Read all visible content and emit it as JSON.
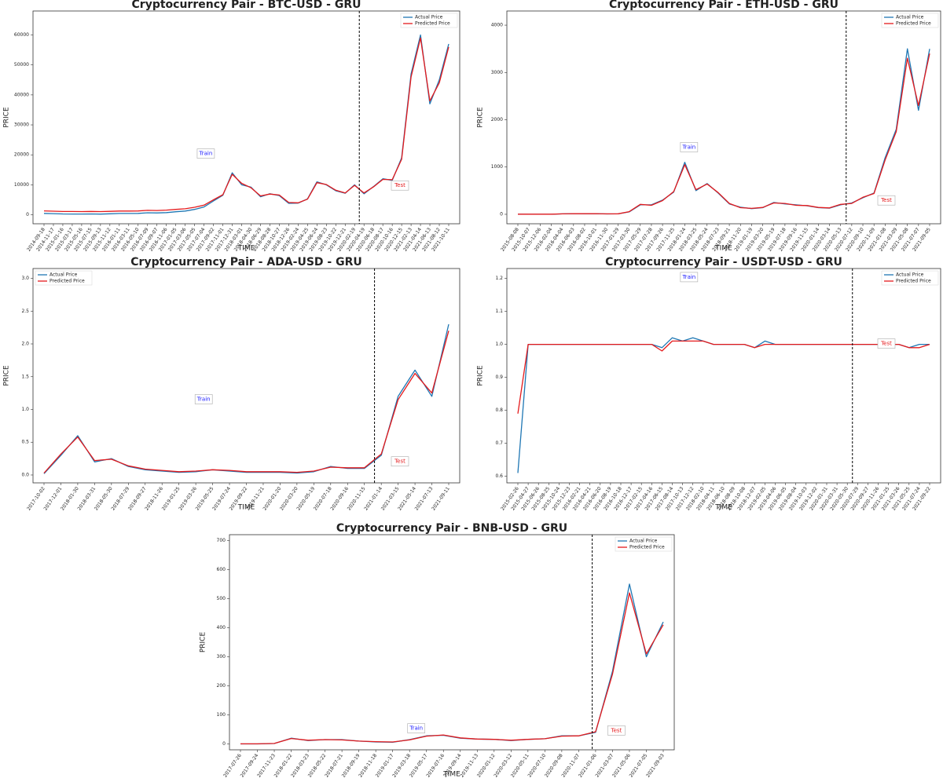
{
  "chart_data": [
    {
      "type": "line",
      "title": "Cryptocurrency Pair - BTC-USD - GRU",
      "xlabel": "TIME",
      "ylabel": "PRICE",
      "train_label": "Train",
      "test_label": "Test",
      "legend": "upper right",
      "split": 33.5,
      "categories": [
        "2014-09-18",
        "2014-11-17",
        "2015-01-16",
        "2015-03-17",
        "2015-05-16",
        "2015-07-15",
        "2015-09-13",
        "2015-11-12",
        "2016-01-11",
        "2016-03-11",
        "2016-05-10",
        "2016-07-09",
        "2016-09-07",
        "2016-11-06",
        "2017-01-05",
        "2017-03-06",
        "2017-05-05",
        "2017-07-04",
        "2017-09-02",
        "2017-11-01",
        "2017-12-31",
        "2018-03-01",
        "2018-04-30",
        "2018-06-29",
        "2018-08-28",
        "2018-10-27",
        "2018-12-26",
        "2019-02-24",
        "2019-04-25",
        "2019-06-24",
        "2019-08-23",
        "2019-10-22",
        "2019-12-21",
        "2020-02-19",
        "2020-04-19",
        "2020-06-18",
        "2020-08-17",
        "2020-10-16",
        "2020-12-15",
        "2021-02-13",
        "2021-04-14",
        "2021-06-13",
        "2021-08-12",
        "2021-10-11"
      ],
      "series": [
        {
          "name": "Actual Price",
          "color": "#1f77b4",
          "values": [
            450,
            380,
            270,
            250,
            240,
            280,
            230,
            330,
            430,
            420,
            450,
            660,
            610,
            720,
            1000,
            1250,
            1800,
            2600,
            4600,
            6500,
            14000,
            10000,
            9200,
            6000,
            7000,
            6400,
            3800,
            3900,
            5300,
            11000,
            10000,
            8000,
            7200,
            10000,
            7000,
            9400,
            12000,
            11500,
            19000,
            47000,
            60000,
            37000,
            45000,
            57000
          ]
        },
        {
          "name": "Predicted Price",
          "color": "#e41a1c",
          "values": [
            1300,
            1200,
            1100,
            1080,
            1070,
            1110,
            1060,
            1150,
            1250,
            1240,
            1280,
            1480,
            1430,
            1550,
            1800,
            2000,
            2500,
            3200,
            5000,
            6700,
            13500,
            10500,
            9000,
            6300,
            6900,
            6600,
            4100,
            4000,
            5200,
            10700,
            10100,
            8200,
            7300,
            9800,
            7300,
            9300,
            11800,
            11700,
            18500,
            46000,
            59000,
            38000,
            44000,
            56000
          ]
        }
      ],
      "ylim": [
        -3000,
        68000
      ],
      "yticks": [
        0,
        10000,
        20000,
        30000,
        40000,
        50000,
        60000
      ]
    },
    {
      "type": "line",
      "title": "Cryptocurrency Pair - ETH-USD - GRU",
      "xlabel": "TIME",
      "ylabel": "PRICE",
      "train_label": "Train",
      "test_label": "Test",
      "legend": "upper right",
      "split": 29.5,
      "categories": [
        "2015-08-08",
        "2015-10-07",
        "2015-12-06",
        "2016-02-04",
        "2016-04-04",
        "2016-06-03",
        "2016-08-02",
        "2016-10-01",
        "2016-11-30",
        "2017-01-29",
        "2017-03-30",
        "2017-05-29",
        "2017-07-28",
        "2017-09-26",
        "2017-11-25",
        "2018-01-24",
        "2018-03-25",
        "2018-05-24",
        "2018-07-23",
        "2018-09-21",
        "2018-11-20",
        "2019-01-19",
        "2019-03-20",
        "2019-05-19",
        "2019-07-18",
        "2019-09-16",
        "2019-11-15",
        "2020-01-14",
        "2020-03-14",
        "2020-05-13",
        "2020-07-12",
        "2020-09-10",
        "2020-11-09",
        "2021-01-08",
        "2021-03-09",
        "2021-05-08",
        "2021-07-07",
        "2021-09-05"
      ],
      "series": [
        {
          "name": "Actual Price",
          "color": "#1f77b4",
          "values": [
            2,
            1,
            1,
            1,
            9,
            14,
            11,
            12,
            8,
            10,
            50,
            200,
            200,
            300,
            470,
            1100,
            500,
            650,
            450,
            220,
            150,
            120,
            140,
            250,
            220,
            200,
            180,
            140,
            130,
            200,
            240,
            350,
            450,
            1200,
            1800,
            3500,
            2200,
            3500
          ]
        },
        {
          "name": "Predicted Price",
          "color": "#e41a1c",
          "values": [
            3,
            2,
            2,
            2,
            10,
            15,
            12,
            12,
            9,
            11,
            55,
            210,
            190,
            290,
            480,
            1050,
            520,
            640,
            460,
            230,
            140,
            125,
            145,
            240,
            230,
            190,
            185,
            145,
            135,
            210,
            230,
            360,
            440,
            1150,
            1750,
            3300,
            2300,
            3400
          ]
        }
      ],
      "ylim": [
        -200,
        4300
      ],
      "yticks": [
        0,
        1000,
        2000,
        3000,
        4000
      ]
    },
    {
      "type": "line",
      "title": "Cryptocurrency Pair - ADA-USD - GRU",
      "xlabel": "TIME",
      "ylabel": "PRICE",
      "train_label": "Train",
      "test_label": "Test",
      "legend": "upper left",
      "split": 19.6,
      "categories": [
        "2017-10-02",
        "2017-12-01",
        "2018-01-30",
        "2018-03-31",
        "2018-05-30",
        "2018-07-29",
        "2018-09-27",
        "2018-11-26",
        "2019-01-25",
        "2019-03-26",
        "2019-05-25",
        "2019-07-24",
        "2019-09-22",
        "2019-11-21",
        "2020-01-20",
        "2020-03-20",
        "2020-05-19",
        "2020-07-18",
        "2020-09-16",
        "2020-11-15",
        "2021-01-14",
        "2021-03-15",
        "2021-05-14",
        "2021-07-13",
        "2021-09-11"
      ],
      "series": [
        {
          "name": "Actual Price",
          "color": "#1f77b4",
          "values": [
            0.02,
            0.3,
            0.6,
            0.2,
            0.25,
            0.13,
            0.08,
            0.06,
            0.04,
            0.05,
            0.08,
            0.06,
            0.04,
            0.04,
            0.04,
            0.03,
            0.05,
            0.13,
            0.1,
            0.1,
            0.3,
            1.2,
            1.6,
            1.2,
            2.3
          ]
        },
        {
          "name": "Predicted Price",
          "color": "#e41a1c",
          "values": [
            0.03,
            0.32,
            0.58,
            0.22,
            0.24,
            0.14,
            0.09,
            0.07,
            0.05,
            0.06,
            0.08,
            0.07,
            0.05,
            0.05,
            0.05,
            0.04,
            0.06,
            0.12,
            0.11,
            0.11,
            0.32,
            1.15,
            1.55,
            1.25,
            2.2
          ]
        }
      ],
      "ylim": [
        -0.12,
        3.15
      ],
      "yticks": [
        {
          "value": 0,
          "label": "0.0"
        },
        0.5,
        {
          "value": 1,
          "label": "1.0"
        },
        1.5,
        {
          "value": 2,
          "label": "2.0"
        },
        2.5,
        {
          "value": 3,
          "label": "3.0"
        }
      ]
    },
    {
      "type": "line",
      "title": "Cryptocurrency Pair - USDT-USD - GRU",
      "xlabel": "TIME",
      "ylabel": "PRICE",
      "train_label": "Train",
      "test_label": "Test",
      "legend": "upper right",
      "split": 32.5,
      "categories": [
        "2015-02-26",
        "2015-04-27",
        "2015-06-26",
        "2015-08-25",
        "2015-10-24",
        "2015-12-23",
        "2016-02-21",
        "2016-04-21",
        "2016-06-20",
        "2016-08-19",
        "2016-10-18",
        "2016-12-17",
        "2017-02-15",
        "2017-04-16",
        "2017-06-15",
        "2017-08-14",
        "2017-10-13",
        "2017-12-12",
        "2018-02-10",
        "2018-04-11",
        "2018-06-10",
        "2018-08-09",
        "2018-10-08",
        "2018-12-07",
        "2019-02-05",
        "2019-04-06",
        "2019-06-05",
        "2019-08-04",
        "2019-10-03",
        "2019-12-02",
        "2020-01-31",
        "2020-03-31",
        "2020-05-30",
        "2020-07-29",
        "2020-09-27",
        "2020-11-26",
        "2021-01-25",
        "2021-03-26",
        "2021-05-25",
        "2021-07-24",
        "2021-09-22"
      ],
      "series": [
        {
          "name": "Actual Price",
          "color": "#1f77b4",
          "values": [
            0.61,
            1,
            1,
            1,
            1,
            1,
            1,
            1,
            1,
            1,
            1,
            1,
            1,
            1,
            0.99,
            1.02,
            1.01,
            1.02,
            1.01,
            1,
            1,
            1,
            1,
            0.99,
            1.01,
            1,
            1,
            1,
            1,
            1,
            1,
            1,
            1,
            1,
            1,
            1,
            1,
            1,
            0.99,
            1,
            1
          ]
        },
        {
          "name": "Predicted Price",
          "color": "#e41a1c",
          "values": [
            0.79,
            1,
            1,
            1,
            1,
            1,
            1,
            1,
            1,
            1,
            1,
            1,
            1,
            1,
            0.98,
            1.01,
            1.01,
            1.01,
            1.01,
            1,
            1,
            1,
            1,
            0.99,
            1,
            1,
            1,
            1,
            1,
            1,
            1,
            1,
            1,
            1,
            1,
            1,
            1,
            1,
            0.99,
            0.99,
            1
          ]
        }
      ],
      "ylim": [
        0.58,
        1.23
      ],
      "yticks": [
        0.6,
        0.7,
        0.8,
        0.9,
        {
          "value": 1,
          "label": "1.0"
        },
        1.1,
        1.2
      ]
    },
    {
      "type": "line",
      "title": "Cryptocurrency Pair - BNB-USD - GRU",
      "xlabel": "TIME",
      "ylabel": "PRICE",
      "train_label": "Train",
      "test_label": "Test",
      "legend": "upper right",
      "split": 20.8,
      "categories": [
        "2017-07-26",
        "2017-09-24",
        "2017-11-23",
        "2018-01-22",
        "2018-03-23",
        "2018-05-22",
        "2018-07-21",
        "2018-09-19",
        "2018-11-18",
        "2019-01-17",
        "2019-03-18",
        "2019-05-17",
        "2019-07-16",
        "2019-09-14",
        "2019-11-13",
        "2020-01-12",
        "2020-03-12",
        "2020-05-11",
        "2020-07-10",
        "2020-09-08",
        "2020-11-07",
        "2021-01-06",
        "2021-03-07",
        "2021-05-06",
        "2021-07-05",
        "2021-09-03"
      ],
      "series": [
        {
          "name": "Actual Price",
          "color": "#1f77b4",
          "values": [
            0.2,
            0.3,
            1.5,
            20,
            12,
            15,
            15,
            10,
            7,
            6,
            15,
            28,
            30,
            20,
            17,
            16,
            12,
            16,
            18,
            28,
            28,
            40,
            250,
            550,
            300,
            420
          ]
        },
        {
          "name": "Predicted Price",
          "color": "#e41a1c",
          "values": [
            0.5,
            0.6,
            2,
            19,
            13,
            15,
            14,
            10,
            8,
            7,
            14,
            27,
            31,
            21,
            17,
            16,
            13,
            16,
            18,
            27,
            28,
            42,
            240,
            520,
            310,
            410
          ]
        }
      ],
      "ylim": [
        -20,
        720
      ],
      "yticks": [
        0,
        100,
        200,
        300,
        400,
        500,
        600,
        700
      ]
    }
  ]
}
